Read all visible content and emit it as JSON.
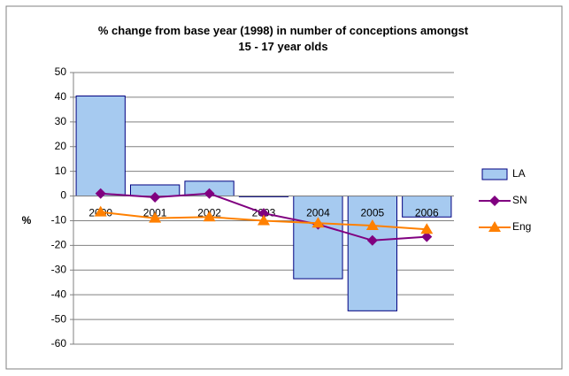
{
  "chart_data": {
    "type": "bar",
    "title": "% change from base year (1998) in number of conceptions amongst 15 - 17 year olds",
    "y_label": "%",
    "categories": [
      "2000",
      "2001",
      "2002",
      "2003",
      "2004",
      "2005",
      "2006"
    ],
    "series": [
      {
        "name": "LA",
        "type": "bar",
        "color": "#a6caf0",
        "values": [
          40.5,
          4.5,
          6,
          -0.3,
          -33.5,
          -46.5,
          -8.5
        ]
      },
      {
        "name": "SN",
        "type": "line",
        "marker": "diamond",
        "color": "#800080",
        "values": [
          1,
          -0.5,
          1,
          -7,
          -11.5,
          -18,
          -16.5
        ]
      },
      {
        "name": "Eng",
        "type": "line",
        "marker": "triangle",
        "color": "#ff8000",
        "values": [
          -6.5,
          -9,
          -8.5,
          -10,
          -11,
          -12,
          -13.5
        ]
      }
    ],
    "ylim": [
      -60,
      50
    ],
    "yticks": [
      -60,
      -50,
      -40,
      -30,
      -20,
      -10,
      0,
      10,
      20,
      30,
      40,
      50
    ],
    "grid": true,
    "legend": "right"
  }
}
